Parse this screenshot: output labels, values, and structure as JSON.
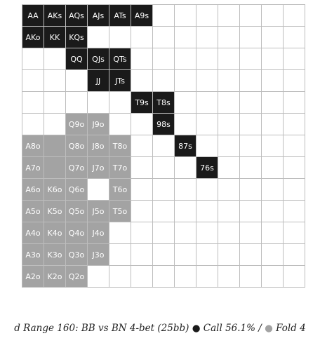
{
  "grid": {
    "cells": [
      {
        "r": 0,
        "c": 0,
        "label": "AA",
        "action": "raise"
      },
      {
        "r": 0,
        "c": 1,
        "label": "AKs",
        "action": "raise"
      },
      {
        "r": 0,
        "c": 2,
        "label": "AQs",
        "action": "raise"
      },
      {
        "r": 0,
        "c": 3,
        "label": "AJs",
        "action": "raise"
      },
      {
        "r": 0,
        "c": 4,
        "label": "ATs",
        "action": "raise"
      },
      {
        "r": 0,
        "c": 5,
        "label": "A9s",
        "action": "raise"
      },
      {
        "r": 1,
        "c": 0,
        "label": "AKo",
        "action": "raise"
      },
      {
        "r": 1,
        "c": 1,
        "label": "KK",
        "action": "raise"
      },
      {
        "r": 1,
        "c": 2,
        "label": "KQs",
        "action": "raise"
      },
      {
        "r": 2,
        "c": 2,
        "label": "QQ",
        "action": "raise"
      },
      {
        "r": 2,
        "c": 3,
        "label": "QJs",
        "action": "raise"
      },
      {
        "r": 2,
        "c": 4,
        "label": "QTs",
        "action": "raise"
      },
      {
        "r": 3,
        "c": 3,
        "label": "JJ",
        "action": "raise"
      },
      {
        "r": 3,
        "c": 4,
        "label": "JTs",
        "action": "raise"
      },
      {
        "r": 4,
        "c": 5,
        "label": "T9s",
        "action": "raise"
      },
      {
        "r": 4,
        "c": 6,
        "label": "T8s",
        "action": "raise"
      },
      {
        "r": 5,
        "c": 2,
        "label": "Q9o",
        "action": "call"
      },
      {
        "r": 5,
        "c": 3,
        "label": "J9o",
        "action": "call"
      },
      {
        "r": 5,
        "c": 6,
        "label": "98s",
        "action": "raise"
      },
      {
        "r": 6,
        "c": 0,
        "label": "A8o",
        "action": "call"
      },
      {
        "r": 6,
        "c": 1,
        "label": "",
        "action": "call"
      },
      {
        "r": 6,
        "c": 2,
        "label": "Q8o",
        "action": "call"
      },
      {
        "r": 6,
        "c": 3,
        "label": "J8o",
        "action": "call"
      },
      {
        "r": 6,
        "c": 4,
        "label": "T8o",
        "action": "call"
      },
      {
        "r": 6,
        "c": 7,
        "label": "87s",
        "action": "raise"
      },
      {
        "r": 7,
        "c": 0,
        "label": "A7o",
        "action": "call"
      },
      {
        "r": 7,
        "c": 1,
        "label": "",
        "action": "call"
      },
      {
        "r": 7,
        "c": 2,
        "label": "Q7o",
        "action": "call"
      },
      {
        "r": 7,
        "c": 3,
        "label": "J7o",
        "action": "call"
      },
      {
        "r": 7,
        "c": 4,
        "label": "T7o",
        "action": "call"
      },
      {
        "r": 7,
        "c": 8,
        "label": "76s",
        "action": "raise"
      },
      {
        "r": 8,
        "c": 0,
        "label": "A6o",
        "action": "call"
      },
      {
        "r": 8,
        "c": 1,
        "label": "K6o",
        "action": "call"
      },
      {
        "r": 8,
        "c": 2,
        "label": "Q6o",
        "action": "call"
      },
      {
        "r": 8,
        "c": 4,
        "label": "T6o",
        "action": "call"
      },
      {
        "r": 9,
        "c": 0,
        "label": "A5o",
        "action": "call"
      },
      {
        "r": 9,
        "c": 1,
        "label": "K5o",
        "action": "call"
      },
      {
        "r": 9,
        "c": 2,
        "label": "Q5o",
        "action": "call"
      },
      {
        "r": 9,
        "c": 3,
        "label": "J5o",
        "action": "call"
      },
      {
        "r": 9,
        "c": 4,
        "label": "T5o",
        "action": "call"
      },
      {
        "r": 10,
        "c": 0,
        "label": "A4o",
        "action": "call"
      },
      {
        "r": 10,
        "c": 1,
        "label": "K4o",
        "action": "call"
      },
      {
        "r": 10,
        "c": 2,
        "label": "Q4o",
        "action": "call"
      },
      {
        "r": 10,
        "c": 3,
        "label": "J4o",
        "action": "call"
      },
      {
        "r": 11,
        "c": 0,
        "label": "A3o",
        "action": "call"
      },
      {
        "r": 11,
        "c": 1,
        "label": "K3o",
        "action": "call"
      },
      {
        "r": 11,
        "c": 2,
        "label": "Q3o",
        "action": "call"
      },
      {
        "r": 11,
        "c": 3,
        "label": "J3o",
        "action": "call"
      },
      {
        "r": 12,
        "c": 0,
        "label": "A2o",
        "action": "call"
      },
      {
        "r": 12,
        "c": 1,
        "label": "K2o",
        "action": "call"
      },
      {
        "r": 12,
        "c": 2,
        "label": "Q2o",
        "action": "call"
      }
    ]
  },
  "caption": {
    "prefix": "d Range 160: BB vs BN 4-bet (25bb)",
    "dot_symbol": "●",
    "call_text": "Call 56.1% /",
    "fold_text": "Fold 4"
  }
}
